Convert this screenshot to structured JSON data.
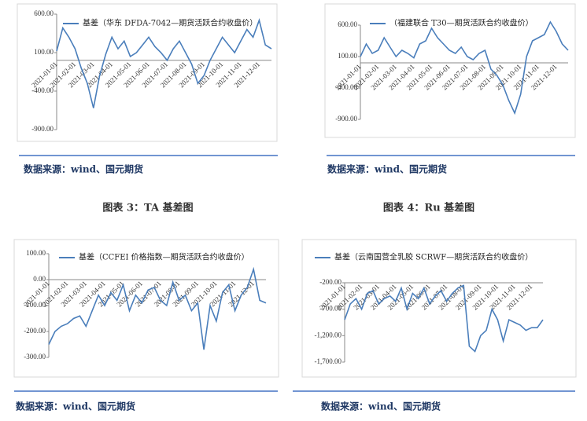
{
  "chart_data": [
    {
      "type": "line",
      "series": [
        {
          "name": "基差（华东 DFDA-7042—期货活跃合约收盘价）",
          "color": "#4a7ebb",
          "values": [
            120,
            420,
            300,
            150,
            -100,
            -300,
            -620,
            -200,
            80,
            300,
            150,
            250,
            50,
            100,
            200,
            300,
            180,
            100,
            0,
            150,
            250,
            100,
            -50,
            -300,
            -200,
            0,
            150,
            300,
            200,
            100,
            250,
            400,
            300,
            520,
            200,
            150
          ]
        }
      ],
      "categories": [
        "2021-01-01",
        null,
        null,
        "2021-02-01",
        null,
        null,
        "2021-03-01",
        null,
        null,
        "2021-04-01",
        null,
        null,
        "2021-05-01",
        null,
        null,
        "2021-06-01",
        null,
        null,
        "2021-07-01",
        null,
        null,
        "2021-08-01",
        null,
        null,
        "2021-09-01",
        null,
        null,
        "2021-10-01",
        null,
        null,
        "2021-11-01",
        null,
        null,
        "2021-12-01",
        null,
        null
      ],
      "ylim": [
        -900,
        600
      ],
      "yticks": [
        {
          "value": -900,
          "label": "-900.00"
        },
        {
          "value": -400,
          "label": "-400.00"
        },
        {
          "value": 100,
          "label": "100.00"
        },
        {
          "value": 600,
          "label": "600.00"
        }
      ]
    },
    {
      "type": "line",
      "series": [
        {
          "name": "（福建联合 T30—期货活跃合约收盘价）",
          "color": "#4a7ebb",
          "values": [
            100,
            300,
            150,
            200,
            400,
            250,
            100,
            200,
            150,
            80,
            300,
            350,
            550,
            400,
            300,
            200,
            150,
            250,
            100,
            50,
            150,
            200,
            -100,
            -200,
            -350,
            -600,
            -800,
            -500,
            100,
            350,
            400,
            450,
            650,
            500,
            300,
            200
          ]
        }
      ],
      "categories": [
        "2021-01-01",
        null,
        null,
        "2021-02-01",
        null,
        null,
        "2021-03-01",
        null,
        null,
        "2021-04-01",
        null,
        null,
        "2021-05-01",
        null,
        null,
        "2021-06-01",
        null,
        null,
        "2021-07-01",
        null,
        null,
        "2021-08-01",
        null,
        null,
        "2021-09-01",
        null,
        null,
        "2021-10-01",
        null,
        null,
        "2021-11-01",
        null,
        null,
        "2021-12-01",
        null,
        null
      ],
      "ylim": [
        -900,
        600
      ],
      "yticks": [
        {
          "value": -900,
          "label": "-900.00"
        },
        {
          "value": -400,
          "label": "-400.00"
        },
        {
          "value": 100,
          "label": "100.00"
        },
        {
          "value": 600,
          "label": "600.00"
        }
      ]
    },
    {
      "type": "line",
      "series": [
        {
          "name": "基差（CCFEI 价格指数—期货活跃合约收盘价）",
          "color": "#4a7ebb",
          "values": [
            -250,
            -200,
            -180,
            -170,
            -150,
            -140,
            -180,
            -120,
            -60,
            -100,
            -50,
            -80,
            -20,
            -120,
            -60,
            -90,
            -40,
            -30,
            -80,
            -100,
            -10,
            -80,
            -60,
            -120,
            -90,
            -270,
            -100,
            -160,
            -50,
            -20,
            -120,
            -60,
            -30,
            40,
            -80,
            -90
          ]
        }
      ],
      "categories": [
        "2021-01-01",
        null,
        null,
        "2021-02-01",
        null,
        null,
        "2021-03-01",
        null,
        null,
        "2021-04-01",
        null,
        null,
        "2021-05-01",
        null,
        null,
        "2021-06-01",
        null,
        null,
        "2021-07-01",
        null,
        null,
        "2021-08-01",
        null,
        null,
        "2021-09-01",
        null,
        null,
        "2021-10-01",
        null,
        null,
        "2021-11-01",
        null,
        null,
        "2021-12-01",
        null,
        null
      ],
      "ylim": [
        -300,
        100
      ],
      "yticks": [
        {
          "value": -300,
          "label": "-300.00"
        },
        {
          "value": -200,
          "label": "-200.00"
        },
        {
          "value": -100,
          "label": "-100.00"
        },
        {
          "value": 0,
          "label": "0.00"
        },
        {
          "value": 100,
          "label": "100.00"
        }
      ]
    },
    {
      "type": "line",
      "series": [
        {
          "name": "基差（云南国营全乳胶 SCRWF—期货活跃合约收盘价）",
          "color": "#4a7ebb",
          "values": [
            -900,
            -600,
            -500,
            -700,
            -400,
            -350,
            -600,
            -500,
            -450,
            -550,
            -300,
            -700,
            -400,
            -500,
            -300,
            -600,
            -450,
            -350,
            -550,
            -400,
            -300,
            -250,
            -1400,
            -1500,
            -1200,
            -1100,
            -700,
            -900,
            -1300,
            -900,
            -950,
            -1000,
            -1100,
            -1050,
            -1050,
            -900
          ]
        }
      ],
      "categories": [
        "2021-01-01",
        null,
        null,
        "2021-02-01",
        null,
        null,
        "2021-03-01",
        null,
        null,
        "2021-04-01",
        null,
        null,
        "2021-05-01",
        null,
        null,
        "2021-06-01",
        null,
        null,
        "2021-07-01",
        null,
        null,
        "2021-08-01",
        null,
        null,
        "2021-09-01",
        null,
        null,
        "2021-10-01",
        null,
        null,
        "2021-11-01",
        null,
        null,
        "2021-12-01",
        null,
        null
      ],
      "ylim": [
        -1700,
        -200
      ],
      "yticks": [
        {
          "value": -1700,
          "label": "-1,700.00"
        },
        {
          "value": -1200,
          "label": "-1,200.00"
        },
        {
          "value": -700,
          "label": "-700.00"
        },
        {
          "value": -200,
          "label": "-200.00"
        }
      ]
    }
  ],
  "sources": [
    "数据来源：wind、国元期货",
    "数据来源：wind、国元期货",
    "数据来源：wind、国元期货",
    "数据来源：wind、国元期货"
  ],
  "figure_titles": [
    "图表 3：TA  基差图",
    "图表 4：Ru  基差图"
  ]
}
